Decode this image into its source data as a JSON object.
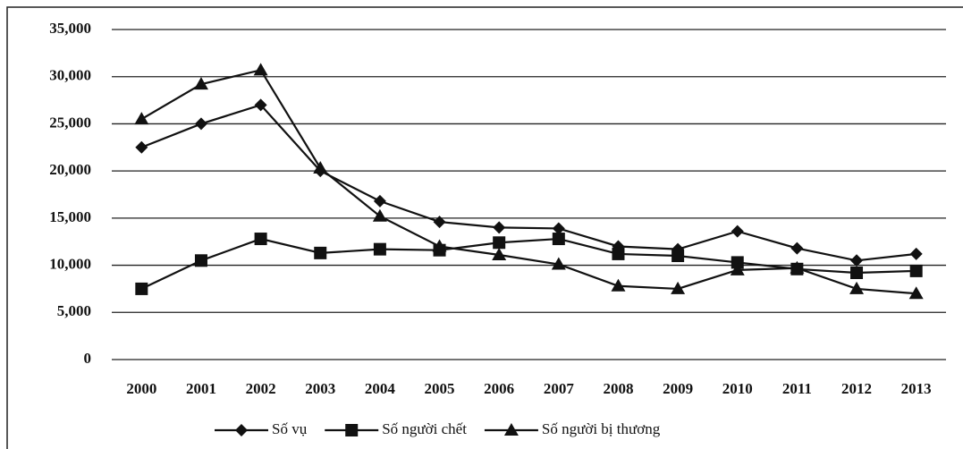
{
  "chart_data": {
    "type": "line",
    "categories": [
      "2000",
      "2001",
      "2002",
      "2003",
      "2004",
      "2005",
      "2006",
      "2007",
      "2008",
      "2009",
      "2010",
      "2011",
      "2012",
      "2013"
    ],
    "series": [
      {
        "name": "Số vụ",
        "color": "#111111",
        "marker": "diamond",
        "values": [
          22500,
          25000,
          27000,
          20000,
          16800,
          14600,
          14000,
          13900,
          12000,
          11700,
          13600,
          11800,
          10500,
          11200
        ]
      },
      {
        "name": "Số người chết",
        "color": "#111111",
        "marker": "square",
        "values": [
          7500,
          10500,
          12800,
          11300,
          11700,
          11600,
          12400,
          12800,
          11200,
          11000,
          10300,
          9600,
          9200,
          9400
        ]
      },
      {
        "name": "Số người bị thương",
        "color": "#111111",
        "marker": "triangle",
        "values": [
          25500,
          29200,
          30700,
          20300,
          15200,
          12000,
          11100,
          10100,
          7800,
          7500,
          9500,
          9700,
          7500,
          7000
        ]
      }
    ],
    "ylim": [
      0,
      35000
    ],
    "yticks": [
      0,
      {
        "value": 5000,
        "label": "5,000"
      },
      {
        "value": 10000,
        "label": "10,000"
      },
      {
        "value": 15000,
        "label": "15,000"
      },
      {
        "value": 20000,
        "label": "20,000"
      },
      {
        "value": 25000,
        "label": "25,000"
      },
      {
        "value": 30000,
        "label": "30,000"
      },
      {
        "value": 35000,
        "label": "35,000"
      }
    ],
    "grid": true,
    "legend": "bottom"
  }
}
